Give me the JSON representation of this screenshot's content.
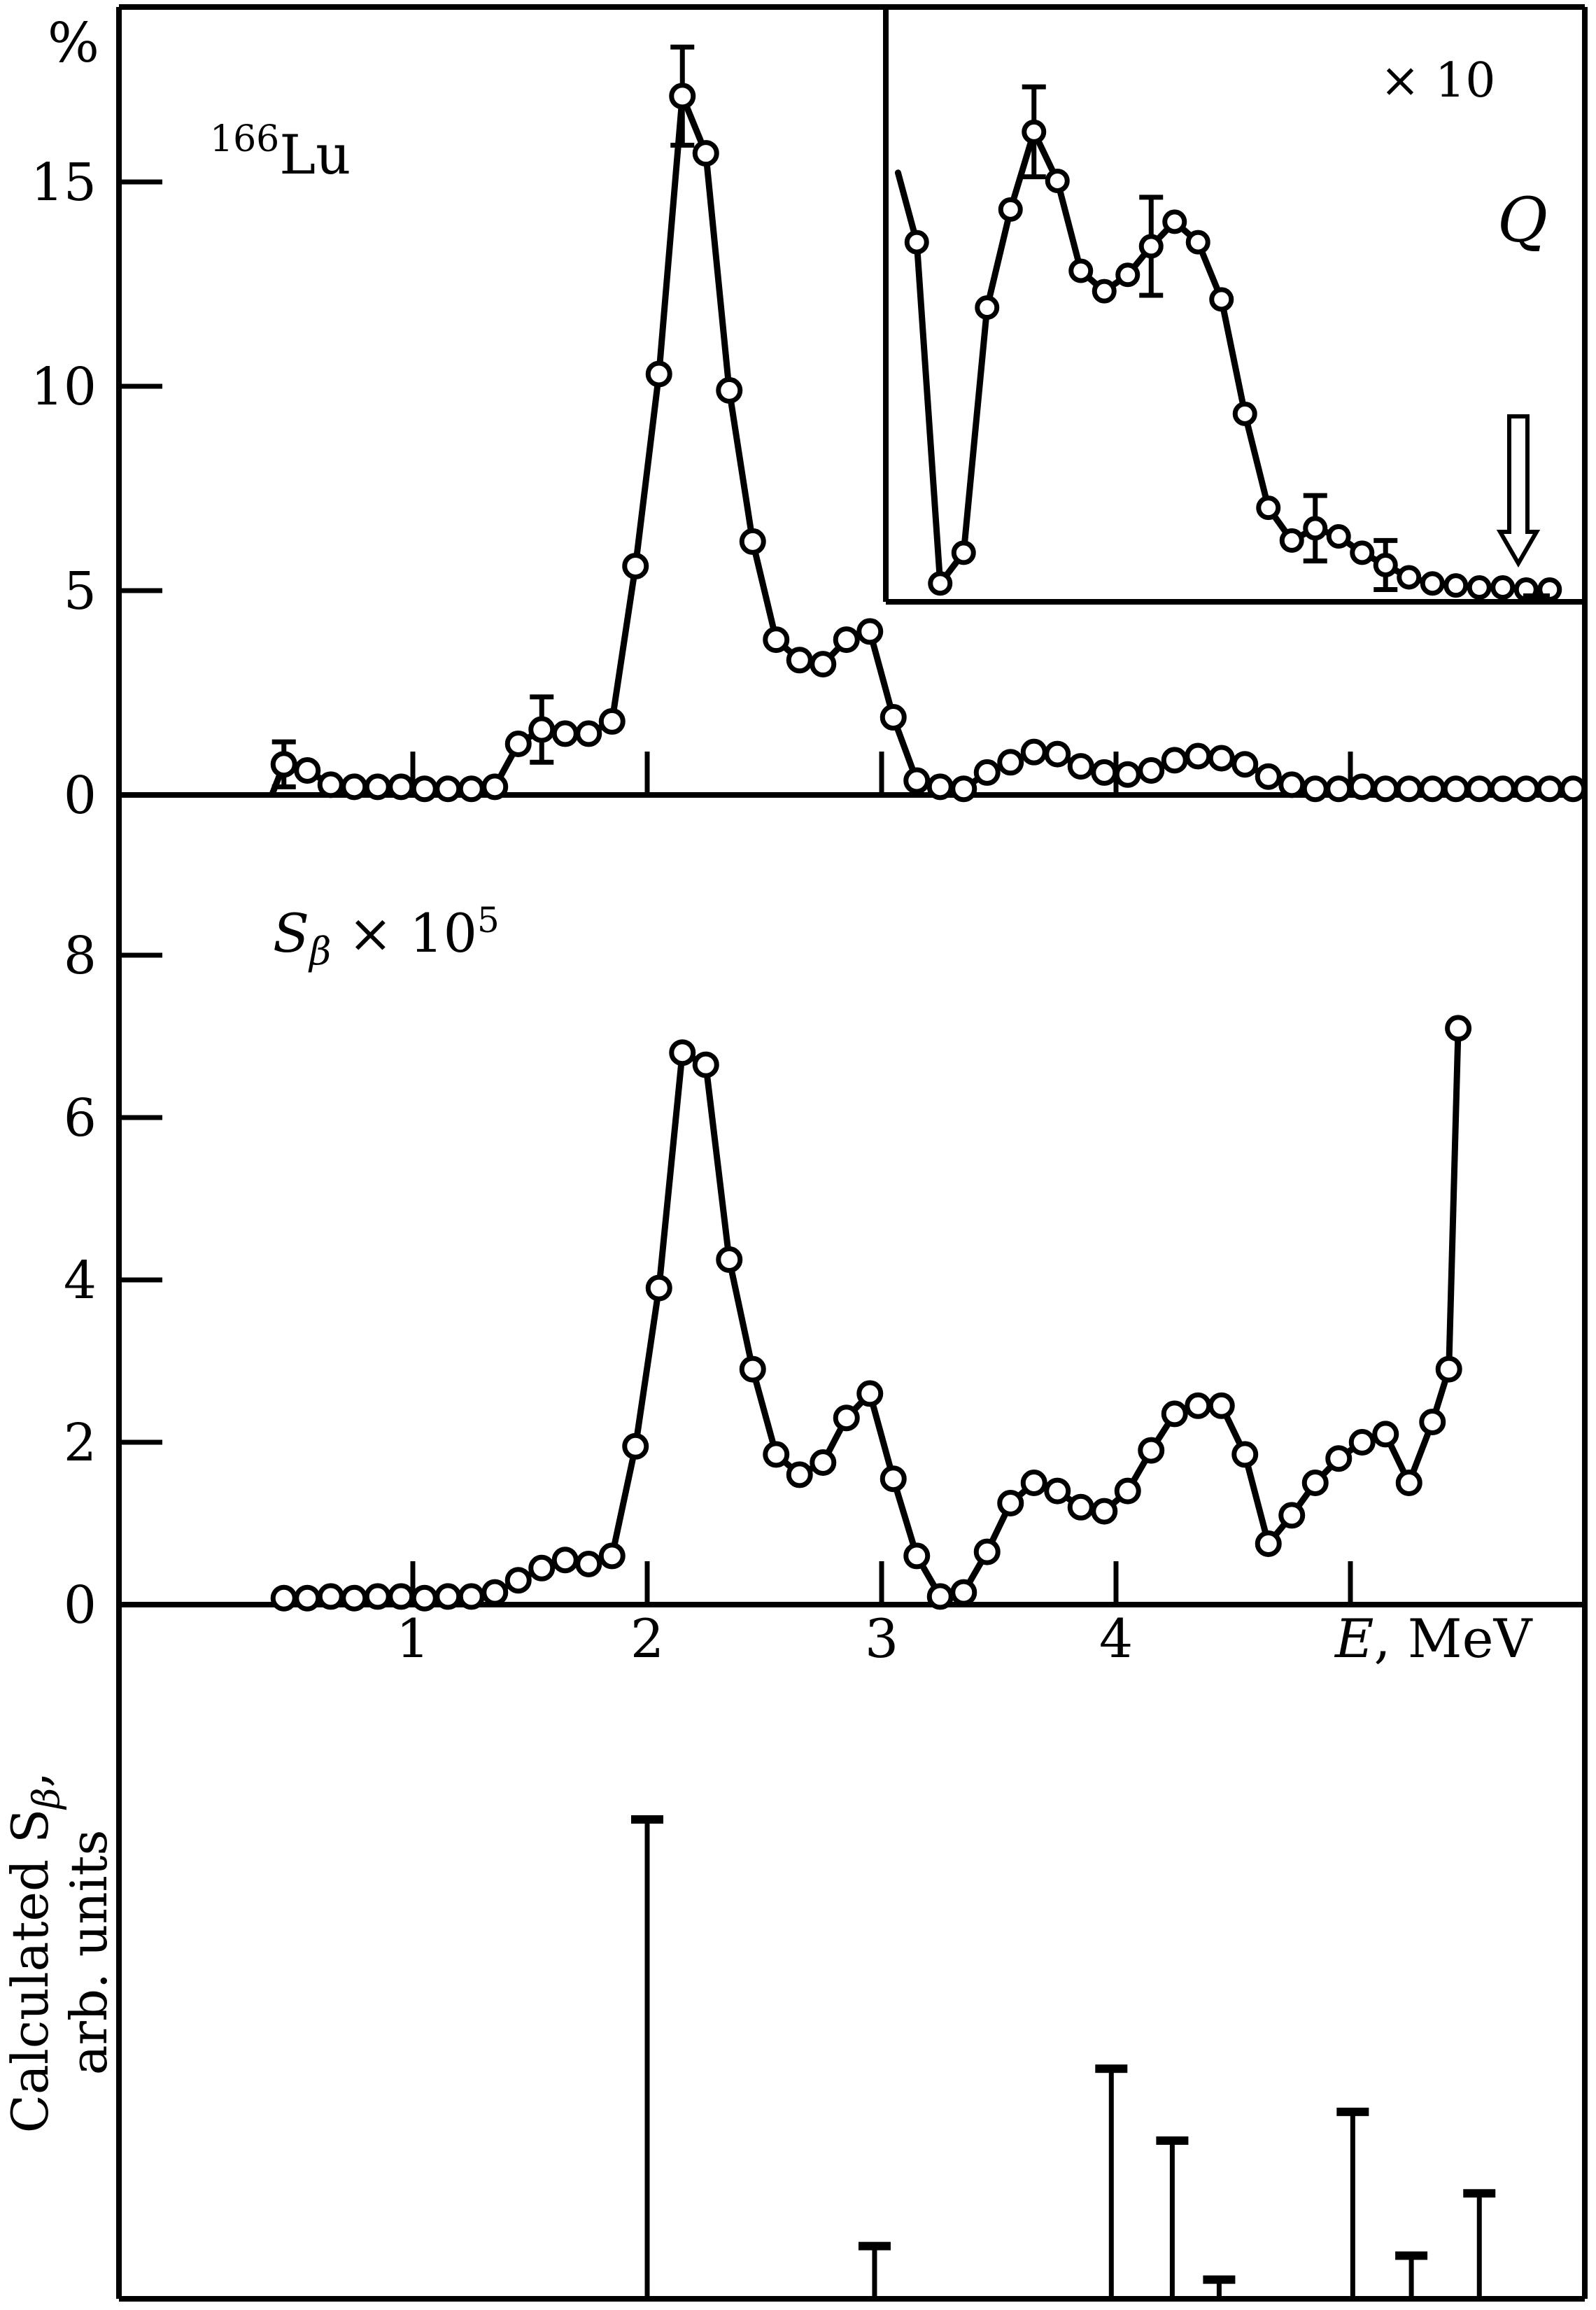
{
  "figure": {
    "background": "#ffffff",
    "ink_color": "#000000"
  },
  "labels": {
    "percent": "%",
    "isotope_mass": "166",
    "isotope_symbol": "Lu",
    "sbeta_s": "S",
    "sbeta_beta": "β",
    "sbeta_times": " × 10",
    "sbeta_exp": "5",
    "magnification": "× 10",
    "q": "Q",
    "x_axis_var": "E",
    "x_axis_unit": ", MeV",
    "calc_line1_main": "Calculated S",
    "calc_line1_sub": "β",
    "calc_line1_comma": ",",
    "calc_line2": "arb. units"
  },
  "chart_data": [
    {
      "id": "beta-intensity",
      "type": "line",
      "title": "166Lu beta-decay intensity",
      "ylabel": "%",
      "xlabel": "E, MeV",
      "yticks": [
        15,
        10,
        5,
        0
      ],
      "ylim": [
        0,
        19.3
      ],
      "grid": false,
      "marker": "open-circle",
      "line_start": {
        "x": 0.4,
        "y": 0.02
      },
      "x": [
        0.45,
        0.55,
        0.65,
        0.75,
        0.85,
        0.95,
        1.05,
        1.15,
        1.25,
        1.35,
        1.45,
        1.55,
        1.65,
        1.75,
        1.85,
        1.95,
        2.05,
        2.15,
        2.25,
        2.35,
        2.45,
        2.55,
        2.65,
        2.75,
        2.85,
        2.95,
        3.05,
        3.15,
        3.25,
        3.35,
        3.45,
        3.55,
        3.65,
        3.75,
        3.85,
        3.95,
        4.05,
        4.15,
        4.25,
        4.35,
        4.45,
        4.55,
        4.65,
        4.75,
        4.85,
        4.95,
        5.05,
        5.15,
        5.25,
        5.35,
        5.45,
        5.55,
        5.65,
        5.75,
        5.85,
        5.95
      ],
      "y": [
        0.75,
        0.6,
        0.25,
        0.2,
        0.2,
        0.2,
        0.15,
        0.15,
        0.15,
        0.2,
        1.25,
        1.6,
        1.5,
        1.5,
        1.8,
        5.6,
        10.3,
        17.1,
        15.7,
        9.9,
        6.2,
        3.8,
        3.3,
        3.2,
        3.8,
        4.0,
        1.9,
        0.35,
        0.2,
        0.15,
        0.55,
        0.8,
        1.05,
        1.0,
        0.7,
        0.55,
        0.5,
        0.6,
        0.85,
        0.95,
        0.9,
        0.75,
        0.45,
        0.25,
        0.15,
        0.15,
        0.2,
        0.15,
        0.15,
        0.15,
        0.15,
        0.15,
        0.15,
        0.15,
        0.15,
        0.15
      ],
      "error_bars": [
        {
          "x": 0.45,
          "dy": 0.55
        },
        {
          "x": 1.55,
          "dy": 0.8
        },
        {
          "x": 2.15,
          "dy": 1.2
        }
      ]
    },
    {
      "id": "inset-x10",
      "type": "line",
      "title": "tail region magnified × 10",
      "magnification_label": "× 10",
      "q_label": "Q",
      "q_marker_x": 5.78,
      "grid": false,
      "marker": "open-circle",
      "line_start": {
        "x": 3.07,
        "y": 10.5
      },
      "x": [
        3.15,
        3.25,
        3.35,
        3.45,
        3.55,
        3.65,
        3.75,
        3.85,
        3.95,
        4.05,
        4.15,
        4.25,
        4.35,
        4.45,
        4.55,
        4.65,
        4.75,
        4.85,
        4.95,
        5.05,
        5.15,
        5.25,
        5.35,
        5.45,
        5.55,
        5.65,
        5.75,
        5.85
      ],
      "y": [
        8.8,
        0.45,
        1.2,
        7.2,
        9.6,
        11.5,
        10.3,
        8.1,
        7.6,
        8.0,
        8.7,
        9.3,
        8.8,
        7.4,
        4.6,
        2.3,
        1.5,
        1.8,
        1.6,
        1.2,
        0.9,
        0.6,
        0.45,
        0.4,
        0.35,
        0.35,
        0.3,
        0.3
      ],
      "error_bars": [
        {
          "x": 3.65,
          "dy": 1.1
        },
        {
          "x": 4.15,
          "dy": 1.2
        },
        {
          "x": 4.85,
          "dy": 0.8
        },
        {
          "x": 5.15,
          "dy": 0.6
        }
      ]
    },
    {
      "id": "strength-function",
      "type": "line",
      "title": "S_beta × 10^5",
      "ylabel": "S_β × 10^5",
      "xlabel": "E, MeV",
      "yticks": [
        8,
        6,
        4,
        2,
        0
      ],
      "ylim": [
        0,
        10
      ],
      "grid": false,
      "marker": "open-circle",
      "x": [
        0.45,
        0.55,
        0.65,
        0.75,
        0.85,
        0.95,
        1.05,
        1.15,
        1.25,
        1.35,
        1.45,
        1.55,
        1.65,
        1.75,
        1.85,
        1.95,
        2.05,
        2.15,
        2.25,
        2.35,
        2.45,
        2.55,
        2.65,
        2.75,
        2.85,
        2.95,
        3.05,
        3.15,
        3.25,
        3.35,
        3.45,
        3.55,
        3.65,
        3.75,
        3.85,
        3.95,
        4.05,
        4.15,
        4.25,
        4.35,
        4.45,
        4.55,
        4.65,
        4.75,
        4.85,
        4.95,
        5.05,
        5.15,
        5.25,
        5.35,
        5.42,
        5.46
      ],
      "y": [
        0.08,
        0.08,
        0.1,
        0.08,
        0.1,
        0.1,
        0.08,
        0.1,
        0.1,
        0.15,
        0.3,
        0.45,
        0.55,
        0.5,
        0.6,
        1.95,
        3.9,
        6.8,
        6.65,
        4.25,
        2.9,
        1.85,
        1.6,
        1.75,
        2.3,
        2.6,
        1.55,
        0.6,
        0.1,
        0.15,
        0.65,
        1.25,
        1.5,
        1.4,
        1.2,
        1.15,
        1.4,
        1.9,
        2.35,
        2.45,
        2.45,
        1.85,
        0.75,
        1.1,
        1.5,
        1.8,
        2.0,
        2.1,
        1.5,
        2.25,
        2.9,
        7.1
      ],
      "error_bars": []
    },
    {
      "id": "calculated-strength",
      "type": "stem",
      "title": "Calculated S_beta, arb. units",
      "ylabel": "Calculated S_β, arb. units",
      "xlabel": "E, MeV",
      "yticks": [],
      "x": [
        2.0,
        2.97,
        3.98,
        4.24,
        4.44,
        5.01,
        5.26,
        5.55
      ],
      "y": [
        1.0,
        0.11,
        0.48,
        0.33,
        0.04,
        0.39,
        0.09,
        0.22
      ]
    }
  ],
  "axis": {
    "x_title": "E, MeV",
    "xtick_labels": [
      "1",
      "2",
      "3",
      "4"
    ],
    "xticks": [
      1,
      2,
      3,
      4,
      5
    ],
    "xlim": [
      -0.25,
      6.0
    ]
  }
}
